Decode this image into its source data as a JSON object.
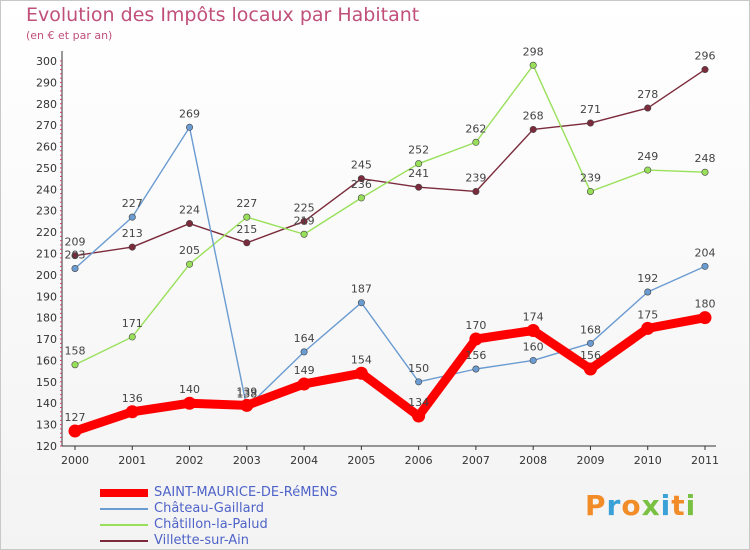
{
  "chart_data": {
    "type": "line",
    "title": "Evolution des Impôts locaux par Habitant",
    "subtitle": "(en € et par an)",
    "xlabel": "",
    "ylabel": "",
    "ylim": [
      120,
      300
    ],
    "yticks": [
      120,
      130,
      140,
      150,
      160,
      170,
      180,
      190,
      200,
      210,
      220,
      230,
      240,
      250,
      260,
      270,
      280,
      290,
      300
    ],
    "x": [
      "2000",
      "2001",
      "2002",
      "2003",
      "2004",
      "2005",
      "2006",
      "2007",
      "2008",
      "2009",
      "2010",
      "2011"
    ],
    "grid": false,
    "legend_position": "bottom-left",
    "series": [
      {
        "name": "SAINT-MAURICE-DE-RéMENS",
        "color": "#ff0000",
        "values": [
          127,
          136,
          140,
          139,
          149,
          154,
          134,
          170,
          174,
          156,
          175,
          180
        ],
        "label_values": [
          "127",
          "136",
          "140",
          "139",
          "149",
          "154",
          "134",
          "170",
          "174",
          "156",
          "175",
          "180"
        ]
      },
      {
        "name": "Château-Gaillard",
        "color": "#6a9bd1",
        "values": [
          203,
          227,
          269,
          138,
          164,
          187,
          150,
          156,
          160,
          168,
          192,
          204
        ],
        "label_values": [
          "203",
          "227",
          "269",
          "138",
          "164",
          "187",
          "150",
          "156",
          "160",
          "168",
          "192",
          "204"
        ]
      },
      {
        "name": "Châtillon-la-Palud",
        "color": "#99e05a",
        "values": [
          158,
          171,
          205,
          227,
          219,
          236,
          252,
          262,
          298,
          239,
          249,
          248
        ],
        "label_values": [
          "158",
          "171",
          "205",
          "227",
          "219",
          "236",
          "252",
          "262",
          "298",
          "239",
          "249",
          "248"
        ]
      },
      {
        "name": "Villette-sur-Ain",
        "color": "#7b2b3b",
        "values": [
          209,
          213,
          224,
          215,
          225,
          245,
          241,
          239,
          268,
          271,
          278,
          296
        ],
        "label_values": [
          "209",
          "213",
          "224",
          "215",
          "225",
          "245",
          "241",
          "239",
          "268",
          "271",
          "278",
          "296"
        ]
      }
    ]
  },
  "logo": {
    "letters": [
      "P",
      "r",
      "o",
      "x",
      "i",
      "t",
      "i"
    ],
    "colors": [
      "#f28c28",
      "#3aa0d8",
      "#f28c28",
      "#7ac143",
      "#3aa0d8",
      "#f28c28",
      "#7ac143"
    ]
  }
}
